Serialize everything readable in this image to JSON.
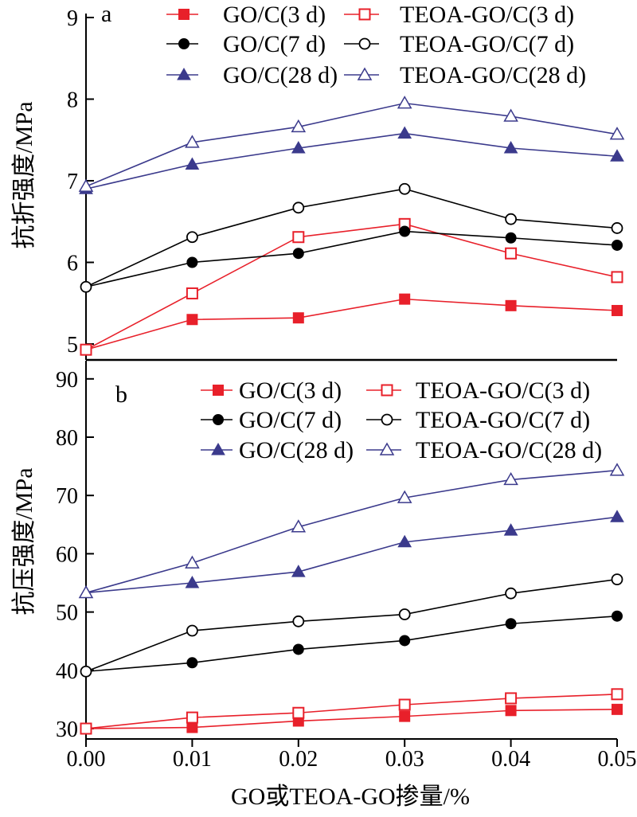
{
  "chart_data": [
    {
      "panel_label": "a",
      "type": "line",
      "ylabel": "抗折强度/MPa",
      "xlabel": "",
      "ylim": [
        4.75,
        9
      ],
      "xlim": [
        0,
        0.05
      ],
      "yticks": [
        "5",
        "6",
        "7",
        "8",
        "9"
      ],
      "x": [
        0,
        0.01,
        0.02,
        0.03,
        0.04,
        0.05
      ],
      "legend_position": "top",
      "series": [
        {
          "name": "GO/C(3 d)",
          "color": "#e8202a",
          "marker": "filled-square",
          "values": [
            4.93,
            5.3,
            5.32,
            5.55,
            5.47,
            5.41
          ]
        },
        {
          "name": "TEOA-GO/C(3 d)",
          "color": "#e8202a",
          "marker": "open-square",
          "values": [
            4.93,
            5.62,
            6.31,
            6.47,
            6.11,
            5.82
          ]
        },
        {
          "name": "GO/C(7 d)",
          "color": "#000000",
          "marker": "filled-circle",
          "values": [
            5.7,
            6.0,
            6.11,
            6.38,
            6.3,
            6.21
          ]
        },
        {
          "name": "TEOA-GO/C(7 d)",
          "color": "#000000",
          "marker": "open-circle",
          "values": [
            5.7,
            6.31,
            6.67,
            6.9,
            6.53,
            6.42
          ]
        },
        {
          "name": "GO/C(28 d)",
          "color": "#3b3a8c",
          "marker": "filled-triangle",
          "values": [
            6.9,
            7.2,
            7.4,
            7.58,
            7.4,
            7.3
          ]
        },
        {
          "name": "TEOA-GO/C(28 d)",
          "color": "#3b3a8c",
          "marker": "open-triangle",
          "values": [
            6.93,
            7.47,
            7.66,
            7.95,
            7.79,
            7.57
          ]
        }
      ]
    },
    {
      "panel_label": "b",
      "type": "line",
      "ylabel": "抗压强度/MPa",
      "xlabel": "GO或TEOA-GO掺量/%",
      "ylim": [
        28,
        95
      ],
      "xlim": [
        0,
        0.05
      ],
      "yticks": [
        "30",
        "40",
        "50",
        "60",
        "70",
        "80",
        "90"
      ],
      "xticks": [
        "0.00",
        "0.01",
        "0.02",
        "0.03",
        "0.04",
        "0.05"
      ],
      "x": [
        0,
        0.01,
        0.02,
        0.03,
        0.04,
        0.05
      ],
      "legend_position": "top",
      "series": [
        {
          "name": "GO/C(3 d)",
          "color": "#e8202a",
          "marker": "filled-square",
          "values": [
            30.0,
            30.2,
            31.3,
            32.1,
            33.1,
            33.3
          ]
        },
        {
          "name": "TEOA-GO/C(3 d)",
          "color": "#e8202a",
          "marker": "open-square",
          "values": [
            30.0,
            31.9,
            32.7,
            34.1,
            35.2,
            35.9
          ]
        },
        {
          "name": "GO/C(7 d)",
          "color": "#000000",
          "marker": "filled-circle",
          "values": [
            39.8,
            41.3,
            43.6,
            45.1,
            48.0,
            49.3
          ]
        },
        {
          "name": "TEOA-GO/C(7 d)",
          "color": "#000000",
          "marker": "open-circle",
          "values": [
            39.8,
            46.8,
            48.4,
            49.6,
            53.2,
            55.6
          ]
        },
        {
          "name": "GO/C(28 d)",
          "color": "#3b3a8c",
          "marker": "filled-triangle",
          "values": [
            53.3,
            55.0,
            56.9,
            62.0,
            64.0,
            66.3
          ]
        },
        {
          "name": "TEOA-GO/C(28 d)",
          "color": "#3b3a8c",
          "marker": "open-triangle",
          "values": [
            53.3,
            58.4,
            64.6,
            69.6,
            72.7,
            74.3
          ]
        }
      ]
    }
  ]
}
